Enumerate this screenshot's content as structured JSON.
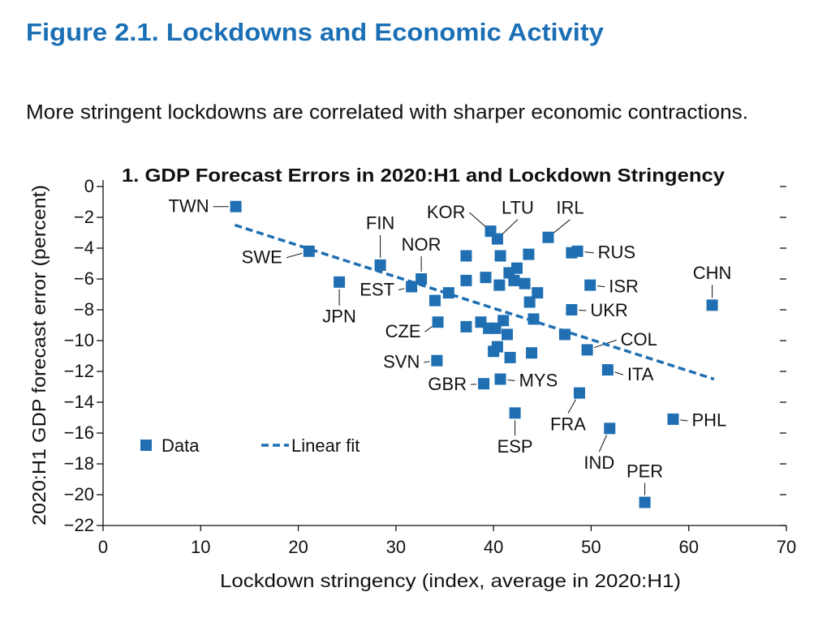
{
  "figure_title": "Figure 2.1.  Lockdowns and Economic Activity",
  "subtitle": "More stringent lockdowns are correlated with sharper economic contractions.",
  "chart_data": {
    "type": "scatter",
    "title": "1. GDP Forecast Errors in 2020:H1 and Lockdown Stringency",
    "xlabel": "Lockdown stringency (index, average in 2020:H1)",
    "ylabel": "2020:H1 GDP forecast error (percent)",
    "xlim": [
      0,
      70
    ],
    "xticks": [
      0,
      10,
      20,
      30,
      40,
      50,
      60,
      70
    ],
    "ylim": [
      -22,
      0
    ],
    "yticks": [
      0,
      {
        "value": -2,
        "label": "−2"
      },
      {
        "value": -4,
        "label": "−4"
      },
      {
        "value": -6,
        "label": "−6"
      },
      {
        "value": -8,
        "label": "−8"
      },
      {
        "value": -10,
        "label": "−10"
      },
      {
        "value": -12,
        "label": "−12"
      },
      {
        "value": -14,
        "label": "−14"
      },
      {
        "value": -16,
        "label": "−16"
      },
      {
        "value": -18,
        "label": "−18"
      },
      {
        "value": -20,
        "label": "−20"
      },
      {
        "value": -22,
        "label": "−22"
      }
    ],
    "grid": false,
    "series": [
      {
        "name": "Data",
        "color": "#1f6fb2",
        "marker": "square",
        "labels": [
          "TWN",
          "SWE",
          "JPN",
          "FIN",
          "EST",
          "NOR",
          "CZE",
          "SVN",
          "KOR",
          "LTU",
          "IRL",
          "RUS",
          "ISR",
          "UKR",
          "CHN",
          "COL",
          "ITA",
          "GBR",
          "MYS",
          "FRA",
          "ESP",
          "IND",
          "PHL",
          "PER",
          null,
          null,
          null,
          null,
          null,
          null,
          null,
          null,
          null,
          null,
          null,
          null,
          null,
          null,
          null,
          null,
          null,
          null,
          null,
          null,
          null,
          null,
          null,
          null,
          null,
          null,
          null
        ],
        "x": [
          13.6,
          21.1,
          24.2,
          28.4,
          31.6,
          32.6,
          34.3,
          34.2,
          39.7,
          40.4,
          45.6,
          48.6,
          49.9,
          48.0,
          62.4,
          49.6,
          51.7,
          39.0,
          40.7,
          48.8,
          42.2,
          51.9,
          58.4,
          55.5,
          48.0,
          37.2,
          40.7,
          43.6,
          37.2,
          39.2,
          41.6,
          42.4,
          40.6,
          42.1,
          43.2,
          44.5,
          35.4,
          34.0,
          43.7,
          37.2,
          38.7,
          39.5,
          40.2,
          41.0,
          41.4,
          44.1,
          47.3,
          40.4,
          40.0,
          41.7,
          43.9
        ],
        "values": [
          -1.3,
          -4.2,
          -6.2,
          -5.1,
          -6.5,
          -6.0,
          -8.8,
          -11.3,
          -2.9,
          -3.4,
          -3.3,
          -4.2,
          -6.4,
          -8.0,
          -7.7,
          -10.6,
          -11.9,
          -12.8,
          -12.5,
          -13.4,
          -14.7,
          -15.7,
          -15.1,
          -20.5,
          -4.3,
          -4.5,
          -4.5,
          -4.4,
          -6.1,
          -5.9,
          -5.6,
          -5.3,
          -6.4,
          -6.1,
          -6.3,
          -6.9,
          -6.9,
          -7.4,
          -7.5,
          -9.1,
          -8.8,
          -9.2,
          -9.2,
          -8.7,
          -9.6,
          -8.6,
          -9.6,
          -10.4,
          -10.7,
          -11.1,
          -10.8
        ]
      },
      {
        "name": "Linear fit",
        "color": "#1f6fb2",
        "style": "dashed",
        "x": [
          13.5,
          62.6
        ],
        "values": [
          -2.5,
          -12.5
        ]
      }
    ]
  }
}
